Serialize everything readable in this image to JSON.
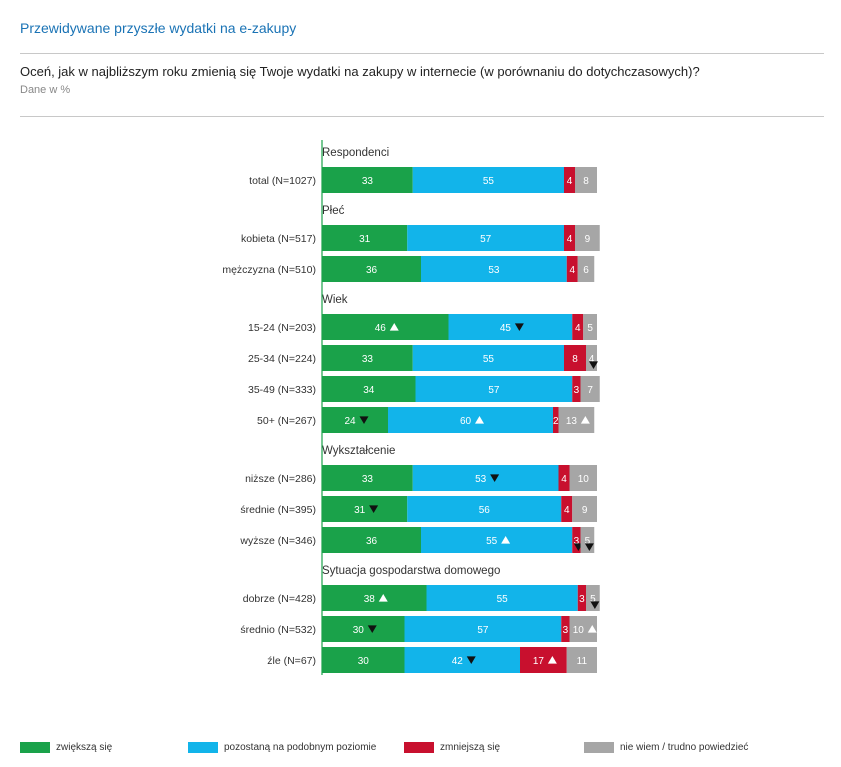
{
  "header": {
    "title": "Przewidywane przyszłe wydatki na e-zakupy",
    "question": "Oceń, jak w najbliższym roku zmienią się Twoje wydatki na zakupy w internecie (w porównaniu do dotychczasowych)?",
    "subtitle": "Dane w %"
  },
  "colors": {
    "increase": "#1aa24a",
    "same": "#12b4ea",
    "decrease": "#c8102e",
    "dontknow": "#a6a6a6",
    "axis": "#1a8a3a"
  },
  "chart_data": {
    "type": "bar",
    "orientation": "horizontal",
    "stacked": true,
    "percent": true,
    "series": [
      {
        "name": "zwiększą się",
        "color": "#1aa24a"
      },
      {
        "name": "pozostaną na podobnym poziomie",
        "color": "#12b4ea"
      },
      {
        "name": "zmniejszą się",
        "color": "#c8102e"
      },
      {
        "name": "nie wiem / trudno powiedzieć",
        "color": "#a6a6a6"
      }
    ],
    "groups": [
      {
        "name": "Respondenci",
        "rows": [
          {
            "label": "total (N=1027)",
            "values": [
              33,
              55,
              4,
              8
            ],
            "marks": [
              "",
              "",
              "",
              ""
            ]
          }
        ]
      },
      {
        "name": "Płeć",
        "rows": [
          {
            "label": "kobieta (N=517)",
            "values": [
              31,
              57,
              4,
              9
            ],
            "marks": [
              "",
              "",
              "",
              ""
            ]
          },
          {
            "label": "mężczyzna (N=510)",
            "values": [
              36,
              53,
              4,
              6
            ],
            "marks": [
              "",
              "",
              "",
              ""
            ]
          }
        ]
      },
      {
        "name": "Wiek",
        "rows": [
          {
            "label": "15-24 (N=203)",
            "values": [
              46,
              45,
              4,
              5
            ],
            "marks": [
              "up",
              "down",
              "",
              ""
            ]
          },
          {
            "label": "25-34 (N=224)",
            "values": [
              33,
              55,
              8,
              4
            ],
            "marks": [
              "",
              "",
              "",
              "down"
            ]
          },
          {
            "label": "35-49 (N=333)",
            "values": [
              34,
              57,
              3,
              7
            ],
            "marks": [
              "",
              "",
              "",
              ""
            ]
          },
          {
            "label": "50+ (N=267)",
            "values": [
              24,
              60,
              2,
              13
            ],
            "marks": [
              "down",
              "up",
              "",
              "up"
            ]
          }
        ]
      },
      {
        "name": "Wykształcenie",
        "rows": [
          {
            "label": "niższe (N=286)",
            "values": [
              33,
              53,
              4,
              10
            ],
            "marks": [
              "",
              "down",
              "",
              ""
            ]
          },
          {
            "label": "średnie (N=395)",
            "values": [
              31,
              56,
              4,
              9
            ],
            "marks": [
              "down",
              "",
              "",
              ""
            ]
          },
          {
            "label": "wyższe (N=346)",
            "values": [
              36,
              55,
              3,
              5
            ],
            "marks": [
              "",
              "up",
              "down",
              "down"
            ]
          }
        ]
      },
      {
        "name": "Sytuacja gospodarstwa domowego",
        "rows": [
          {
            "label": "dobrze (N=428)",
            "values": [
              38,
              55,
              3,
              5
            ],
            "marks": [
              "up",
              "",
              "",
              "down"
            ]
          },
          {
            "label": "średnio (N=532)",
            "values": [
              30,
              57,
              3,
              10
            ],
            "marks": [
              "down",
              "",
              "",
              "up"
            ]
          },
          {
            "label": "źle (N=67)",
            "values": [
              30,
              42,
              17,
              11
            ],
            "marks": [
              "",
              "down",
              "up",
              ""
            ]
          }
        ]
      }
    ]
  }
}
